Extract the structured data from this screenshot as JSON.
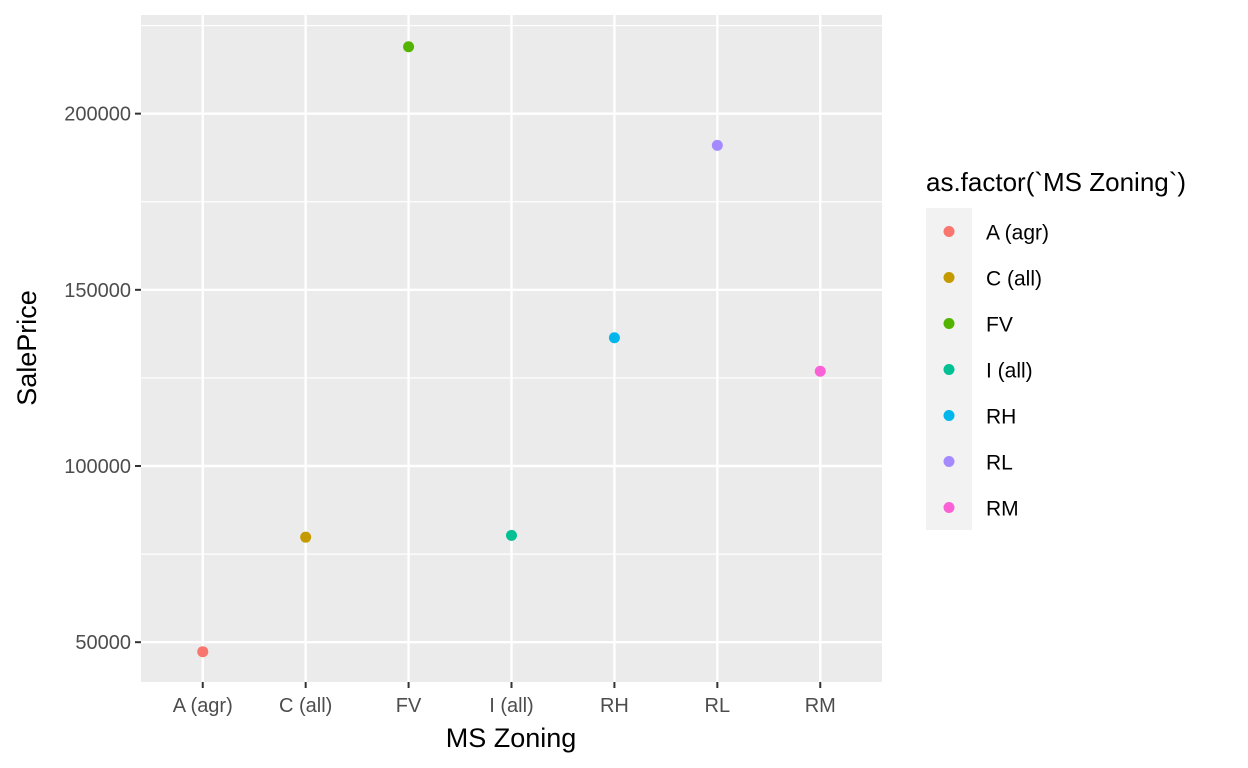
{
  "chart_data": {
    "type": "scatter",
    "title": "",
    "xlabel": "MS Zoning",
    "ylabel": "SalePrice",
    "categories": [
      "A (agr)",
      "C (all)",
      "FV",
      "I (all)",
      "RH",
      "RL",
      "RM"
    ],
    "values": [
      47300,
      79800,
      219000,
      80300,
      136400,
      191000,
      126900
    ],
    "colors": [
      "#F8766D",
      "#C49A00",
      "#53B400",
      "#00C094",
      "#00B6EB",
      "#A58AFF",
      "#FB61D7"
    ],
    "y_ticks": [
      50000,
      100000,
      150000,
      200000
    ],
    "y_tick_labels": [
      "50000",
      "100000",
      "150000",
      "200000"
    ],
    "ylim": [
      38700,
      228000
    ],
    "grid": true,
    "legend": {
      "title": "as.factor(`MS Zoning`)",
      "position": "right",
      "entries": [
        "A (agr)",
        "C (all)",
        "FV",
        "I (all)",
        "RH",
        "RL",
        "RM"
      ]
    }
  }
}
